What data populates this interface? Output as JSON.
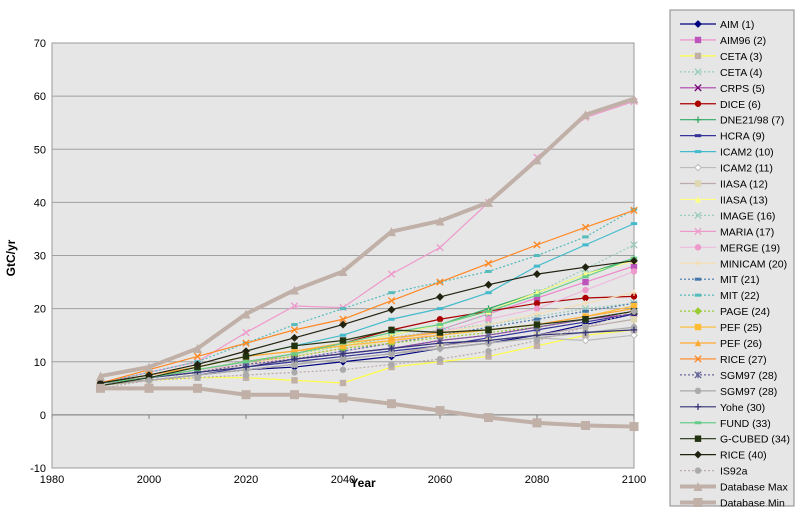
{
  "chart_data": {
    "type": "line",
    "title": "",
    "xlabel": "Year",
    "ylabel": "GtC/yr",
    "xlim": [
      1980,
      2100
    ],
    "ylim": [
      -10,
      70
    ],
    "xticks": [
      1980,
      2000,
      2020,
      2040,
      2060,
      2080,
      2100
    ],
    "yticks": [
      -10,
      0,
      10,
      20,
      30,
      40,
      50,
      60,
      70
    ],
    "grid": "horizontal",
    "legend": "right",
    "x": [
      1990,
      2000,
      2010,
      2020,
      2030,
      2040,
      2050,
      2060,
      2070,
      2080,
      2090,
      2100
    ],
    "series": [
      {
        "name": "AIM (1)",
        "color": "#000080",
        "marker": "diamond",
        "dash": "solid",
        "values": [
          6,
          6.5,
          7.5,
          8.5,
          9,
          10,
          11,
          12.5,
          13.5,
          15,
          17,
          19
        ]
      },
      {
        "name": "AIM96 (2)",
        "color": "#ee88cc",
        "marker": "square-purple",
        "dash": "solid",
        "values": [
          6,
          7,
          8.5,
          10,
          11,
          12.5,
          14,
          16,
          19,
          22,
          25,
          28
        ]
      },
      {
        "name": "CETA (3)",
        "color": "#ffff44",
        "marker": "square-tan",
        "dash": "solid",
        "values": [
          5.5,
          6.5,
          7,
          7,
          6.5,
          6,
          9,
          10,
          11,
          13,
          15,
          16
        ]
      },
      {
        "name": "CETA (4)",
        "color": "#99ccbb",
        "marker": "x",
        "dash": "dotted",
        "values": [
          6,
          7,
          8.5,
          10,
          11,
          12.5,
          14,
          16,
          19,
          23,
          27.5,
          32
        ]
      },
      {
        "name": "CRPS (5)",
        "color": "#aa44aa",
        "marker": "x-dark",
        "dash": "solid",
        "values": [
          6,
          7,
          8,
          9.5,
          10.5,
          11.5,
          12.5,
          14,
          15,
          16.5,
          18,
          19
        ]
      },
      {
        "name": "DICE (6)",
        "color": "#aa0000",
        "marker": "circle",
        "dash": "solid",
        "values": [
          6,
          7,
          8.5,
          10,
          11.5,
          13.5,
          16,
          18,
          19.5,
          21,
          22,
          22.3
        ]
      },
      {
        "name": "DNE21/98 (7)",
        "color": "#33aa66",
        "marker": "plus",
        "dash": "solid",
        "values": [
          6,
          7,
          8.5,
          10,
          11.5,
          13,
          15,
          17,
          20,
          23,
          26.5,
          29.5
        ]
      },
      {
        "name": "HCRA (9)",
        "color": "#333399",
        "marker": "dash",
        "dash": "solid",
        "values": [
          6,
          6.5,
          7.5,
          9,
          10,
          11,
          12,
          13,
          14.5,
          16,
          17.5,
          19
        ]
      },
      {
        "name": "ICAM2 (10)",
        "color": "#44bbcc",
        "marker": "dash",
        "dash": "solid",
        "values": [
          6,
          7.5,
          9,
          11,
          13,
          15,
          18,
          20,
          23,
          28,
          32,
          36
        ]
      },
      {
        "name": "ICAM2 (11)",
        "color": "#bbbbbb",
        "marker": "diamond-open",
        "dash": "solid",
        "values": [
          6,
          6.5,
          7.5,
          8.5,
          9.5,
          10.5,
          11.5,
          12.5,
          13.5,
          14.5,
          14,
          15
        ]
      },
      {
        "name": "IIASA (12)",
        "color": "#bbaaaa",
        "marker": "square-light",
        "dash": "solid",
        "values": [
          6,
          6.5,
          7.5,
          8.5,
          9.5,
          10.5,
          11.5,
          13,
          14,
          15,
          16.5,
          18
        ]
      },
      {
        "name": "IIASA (13)",
        "color": "#ffff88",
        "marker": "triangle",
        "dash": "solid",
        "values": [
          6,
          7,
          8.5,
          10,
          11.5,
          13,
          15,
          17,
          19.5,
          23,
          26.5,
          29
        ]
      },
      {
        "name": "IMAGE (16)",
        "color": "#99ccbb",
        "marker": "x",
        "dash": "dotted",
        "values": [
          6,
          7,
          8.5,
          10,
          11.5,
          13,
          14.5,
          16,
          17,
          18.5,
          20,
          21
        ]
      },
      {
        "name": "MARIA (17)",
        "color": "#ee99cc",
        "marker": "x",
        "dash": "solid",
        "values": [
          6,
          8,
          10,
          15.5,
          20.5,
          20.2,
          26.5,
          31.5,
          40,
          48.5,
          56,
          59
        ]
      },
      {
        "name": "MERGE (19)",
        "color": "#eebbdd",
        "marker": "circle-pink",
        "dash": "solid",
        "values": [
          6,
          7,
          8.5,
          9.5,
          10.5,
          12,
          13.5,
          15.5,
          18,
          20,
          23.5,
          27
        ]
      },
      {
        "name": "MINICAM (20)",
        "color": "#f5deb3",
        "marker": "plus",
        "dash": "solid",
        "values": [
          6,
          7,
          8,
          9.5,
          11,
          12.5,
          14,
          15.5,
          17,
          19,
          21,
          23
        ]
      },
      {
        "name": "MIT (21)",
        "color": "#4477aa",
        "marker": "dash",
        "dash": "dotted",
        "values": [
          6,
          7,
          8,
          9.5,
          10.5,
          12,
          13.5,
          15,
          16.5,
          18,
          19.5,
          21
        ]
      },
      {
        "name": "MIT (22)",
        "color": "#55bbbb",
        "marker": "dash",
        "dash": "dotted",
        "values": [
          6,
          8,
          10,
          13.5,
          17,
          20,
          23,
          25,
          27,
          30,
          33.5,
          38.7
        ]
      },
      {
        "name": "PAGE (24)",
        "color": "#99cc33",
        "marker": "diamond",
        "dash": "dotted",
        "values": [
          6,
          7,
          8.5,
          10,
          11,
          12.5,
          13.5,
          14.5,
          15.5,
          16.5,
          18,
          19.5
        ]
      },
      {
        "name": "PEF (25)",
        "color": "#ffbb33",
        "marker": "square",
        "dash": "solid",
        "values": [
          6,
          7.5,
          9,
          11,
          12,
          13,
          14,
          15,
          16,
          17,
          18.5,
          20.5
        ]
      },
      {
        "name": "PEF (26)",
        "color": "#ffaa33",
        "marker": "triangle",
        "dash": "solid",
        "values": [
          6,
          7.5,
          9,
          11,
          12,
          13.5,
          14.5,
          15.5,
          16,
          17,
          18.5,
          20
        ]
      },
      {
        "name": "RICE (27)",
        "color": "#ff8822",
        "marker": "x",
        "dash": "solid",
        "values": [
          6,
          8.5,
          11,
          13.5,
          16,
          18,
          21.5,
          25,
          28.5,
          32,
          35.3,
          38.5
        ]
      },
      {
        "name": "SGM97 (28)",
        "color": "#666699",
        "marker": "star",
        "dash": "dotted",
        "values": [
          6,
          7,
          8,
          9.5,
          10.5,
          11.5,
          12.5,
          14,
          15,
          16.5,
          18,
          19.5
        ]
      },
      {
        "name": "SGM97 (28)",
        "color": "#aaaaaa",
        "marker": "circle-grey",
        "dash": "solid",
        "values": [
          5.5,
          6.5,
          7.5,
          8.5,
          9.5,
          10.5,
          11.5,
          12.5,
          13.5,
          14.5,
          15.5,
          16.5
        ]
      },
      {
        "name": "Yohe (30)",
        "color": "#333377",
        "marker": "plus",
        "dash": "solid",
        "values": [
          6,
          7,
          8,
          9,
          10.5,
          11.5,
          12.5,
          13.5,
          14,
          15,
          15.5,
          16
        ]
      },
      {
        "name": "FUND (33)",
        "color": "#66cc88",
        "marker": "dash",
        "dash": "solid",
        "values": [
          6,
          7,
          8.5,
          10,
          11.5,
          13.5,
          15.5,
          17,
          19.5,
          22.5,
          26,
          29.5
        ]
      },
      {
        "name": "G-CUBED (34)",
        "color": "#223311",
        "marker": "square",
        "dash": "solid",
        "values": [
          5.5,
          7,
          9,
          11,
          13,
          14,
          16,
          15.5,
          16,
          17,
          18,
          19.5
        ]
      },
      {
        "name": "RICE (40)",
        "color": "#222211",
        "marker": "diamond",
        "dash": "solid",
        "values": [
          6,
          7.5,
          9.5,
          12,
          14.5,
          17,
          19.8,
          22.2,
          24.5,
          26.5,
          27.8,
          29
        ]
      },
      {
        "name": "IS92a",
        "color": "#bbaaaa",
        "marker": "circle-grey",
        "dash": "dotted",
        "values": [
          5,
          6.5,
          7,
          7.5,
          8,
          8.5,
          9.5,
          10.5,
          12,
          14,
          16.5,
          19.5
        ]
      },
      {
        "name": "Database Max",
        "color": "#c0b0a8",
        "marker": "triangle-tan",
        "dash": "thick",
        "values": [
          7.3,
          9,
          12.5,
          19,
          23.5,
          27,
          34.5,
          36.5,
          40,
          48,
          56.5,
          59.5
        ]
      },
      {
        "name": "Database Min",
        "color": "#c0b0a8",
        "marker": "square-tan",
        "dash": "thick",
        "values": [
          5,
          5,
          5,
          3.8,
          3.8,
          3.2,
          2.1,
          0.8,
          -0.5,
          -1.5,
          -2,
          -2.2
        ]
      }
    ]
  }
}
